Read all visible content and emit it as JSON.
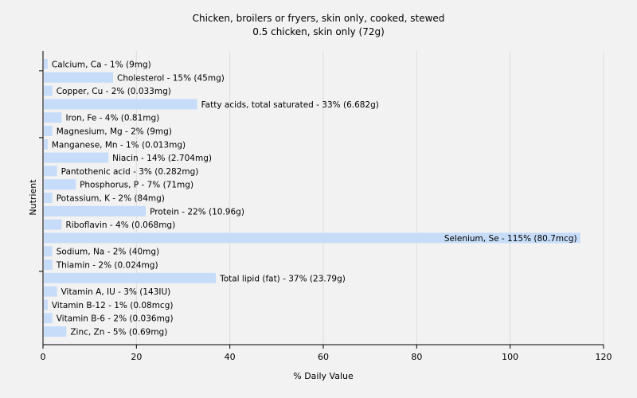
{
  "chart_data": {
    "type": "bar",
    "orientation": "horizontal",
    "title": "Chicken, broilers or fryers, skin only, cooked, stewed",
    "subtitle": "0.5 chicken, skin only (72g)",
    "xlabel": "% Daily Value",
    "ylabel": "Nutrient",
    "xlim": [
      0,
      120
    ],
    "xticks": [
      0,
      20,
      40,
      60,
      80,
      100,
      120
    ],
    "grid": true,
    "bar_color": "#c6dcf8",
    "categories": [
      "Calcium, Ca",
      "Cholesterol",
      "Copper, Cu",
      "Fatty acids, total saturated",
      "Iron, Fe",
      "Magnesium, Mg",
      "Manganese, Mn",
      "Niacin",
      "Pantothenic acid",
      "Phosphorus, P",
      "Potassium, K",
      "Protein",
      "Riboflavin",
      "Selenium, Se",
      "Sodium, Na",
      "Thiamin",
      "Total lipid (fat)",
      "Vitamin A, IU",
      "Vitamin B-12",
      "Vitamin B-6",
      "Zinc, Zn"
    ],
    "values": [
      1,
      15,
      2,
      33,
      4,
      2,
      1,
      14,
      3,
      7,
      2,
      22,
      4,
      115,
      2,
      2,
      37,
      3,
      1,
      2,
      5
    ],
    "labels": [
      "Calcium, Ca - 1% (9mg)",
      "Cholesterol - 15% (45mg)",
      "Copper, Cu - 2% (0.033mg)",
      "Fatty acids, total saturated - 33% (6.682g)",
      "Iron, Fe - 4% (0.81mg)",
      "Magnesium, Mg - 2% (9mg)",
      "Manganese, Mn - 1% (0.013mg)",
      "Niacin - 14% (2.704mg)",
      "Pantothenic acid - 3% (0.282mg)",
      "Phosphorus, P - 7% (71mg)",
      "Potassium, K - 2% (84mg)",
      "Protein - 22% (10.96g)",
      "Riboflavin - 4% (0.068mg)",
      "Selenium, Se - 115% (80.7mcg)",
      "Sodium, Na - 2% (40mg)",
      "Thiamin - 2% (0.024mg)",
      "Total lipid (fat) - 37% (23.79g)",
      "Vitamin A, IU - 3% (143IU)",
      "Vitamin B-12 - 1% (0.08mcg)",
      "Vitamin B-6 - 2% (0.036mg)",
      "Zinc, Zn - 5% (0.69mg)"
    ]
  }
}
